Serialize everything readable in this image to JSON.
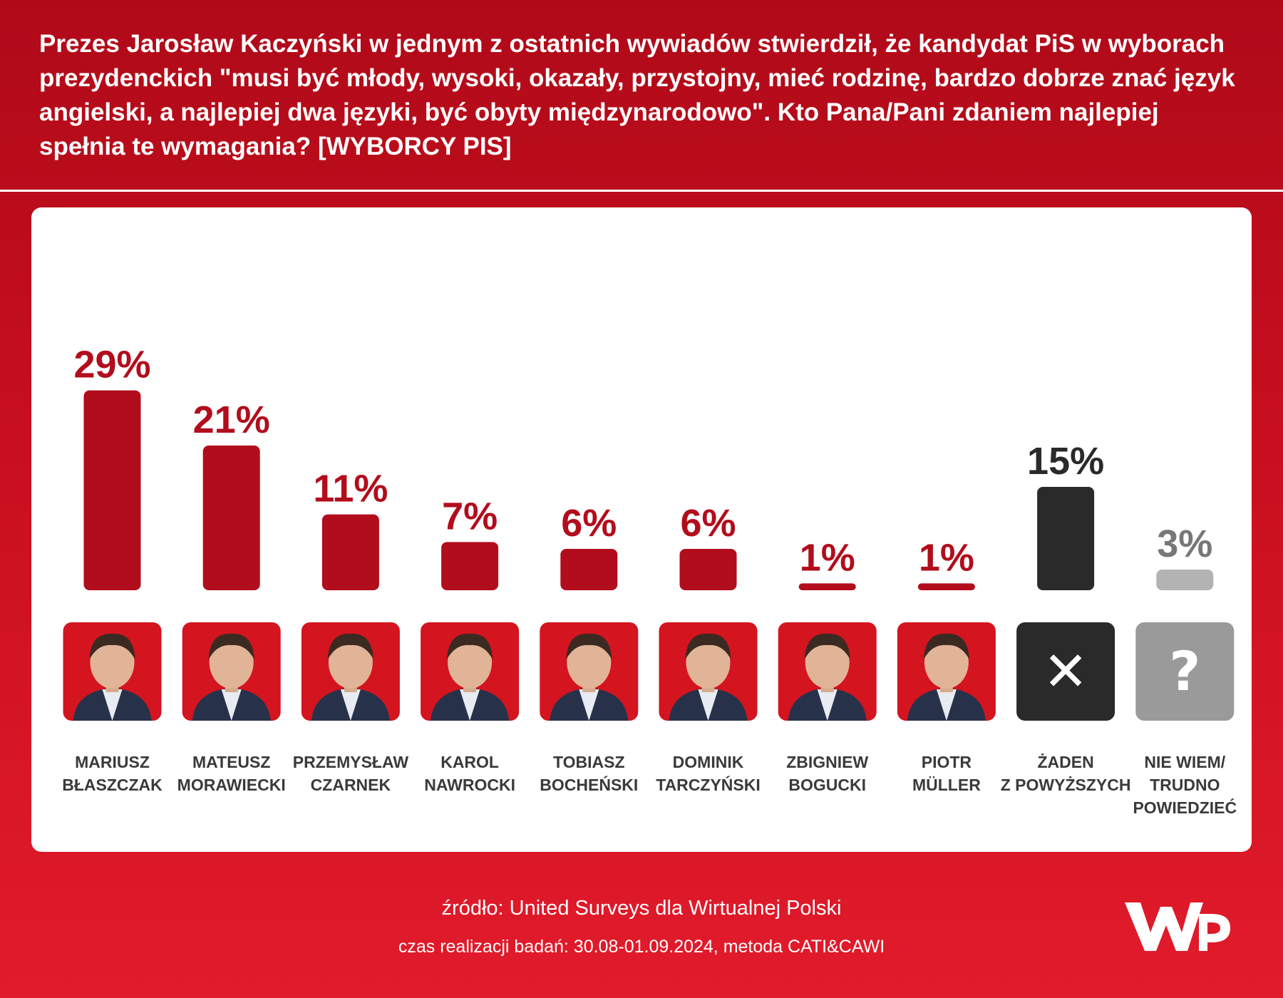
{
  "header": {
    "title": "Prezes Jarosław Kaczyński w jednym z ostatnich wywiadów stwierdził, że kandydat PiS w wyborach prezydenckich \"musi być młody, wysoki, okazały, przystojny, mieć rodzinę, bardzo dobrze znać język angielski, a najlepiej dwa języki, być obyty międzynarodowo\". Kto Pana/Pani zdaniem najlepiej spełnia te wymagania? [WYBORCY PIS]"
  },
  "chart_data": {
    "type": "bar",
    "categories": [
      [
        "MARIUSZ",
        "BŁASZCZAK"
      ],
      [
        "MATEUSZ",
        "MORAWIECKI"
      ],
      [
        "PRZEMYSŁAW",
        "CZARNEK"
      ],
      [
        "KAROL",
        "NAWROCKI"
      ],
      [
        "TOBIASZ",
        "BOCHEŃSKI"
      ],
      [
        "DOMINIK",
        "TARCZYŃSKI"
      ],
      [
        "ZBIGNIEW",
        "BOGUCKI"
      ],
      [
        "PIOTR",
        "MÜLLER"
      ],
      [
        "ŻADEN",
        "Z POWYŻSZYCH"
      ],
      [
        "NIE WIEM/",
        "TRUDNO",
        "POWIEDZIEĆ"
      ]
    ],
    "values": [
      29,
      21,
      11,
      7,
      6,
      6,
      1,
      1,
      15,
      3
    ],
    "value_labels": [
      "29%",
      "21%",
      "11%",
      "7%",
      "6%",
      "6%",
      "1%",
      "1%",
      "15%",
      "3%"
    ],
    "bar_colors": [
      "#b20d1c",
      "#b20d1c",
      "#b20d1c",
      "#b20d1c",
      "#b20d1c",
      "#b20d1c",
      "#b20d1c",
      "#b20d1c",
      "#2a2a2a",
      "#b3b3b3"
    ],
    "value_label_colors": [
      "#b20d1c",
      "#b20d1c",
      "#b20d1c",
      "#b20d1c",
      "#b20d1c",
      "#b20d1c",
      "#b20d1c",
      "#b20d1c",
      "#2a2a2a",
      "#777777"
    ],
    "icons": [
      "portrait",
      "portrait",
      "portrait",
      "portrait",
      "portrait",
      "portrait",
      "portrait",
      "portrait",
      "x-mark-icon",
      "question-mark-icon"
    ],
    "icon_symbols": [
      "",
      "",
      "",
      "",
      "",
      "",
      "",
      "",
      "✕",
      "?"
    ],
    "icon_backgrounds": [
      "#d4141f",
      "#d4141f",
      "#d4141f",
      "#d4141f",
      "#d4141f",
      "#d4141f",
      "#d4141f",
      "#d4141f",
      "#2a2a2a",
      "#9a9a9a"
    ],
    "ylim": [
      0,
      30
    ]
  },
  "footer": {
    "source": "źródło: United Surveys dla Wirtualnej Polski",
    "date": "czas realizacji badań: 30.08-01.09.2024, metoda CATI&CAWI"
  },
  "logo": {
    "text": "WP",
    "color": "#ffffff"
  }
}
